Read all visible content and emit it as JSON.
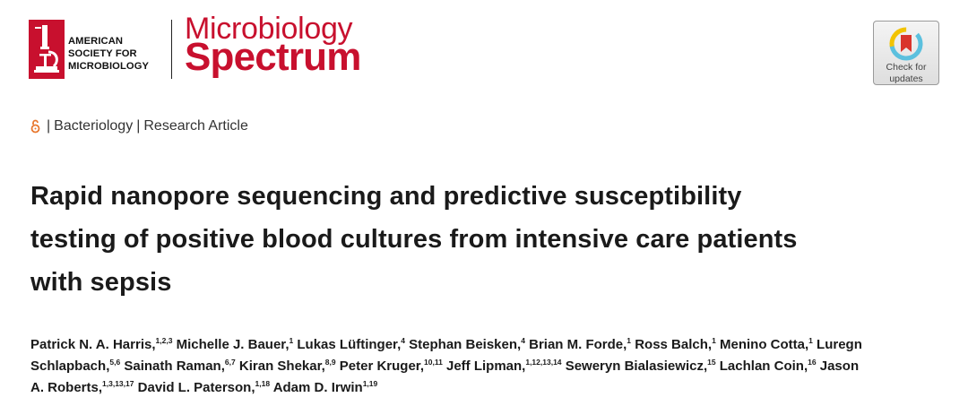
{
  "publisher": {
    "name_lines": [
      "AMERICAN",
      "SOCIETY FOR",
      "MICROBIOLOGY"
    ],
    "brand_color": "#c8102e"
  },
  "journal": {
    "line1": "Microbiology",
    "line2": "Spectrum"
  },
  "check_updates": {
    "line1": "Check for",
    "line2": "updates"
  },
  "article_meta": {
    "open_access_icon": "open-access-icon",
    "separator": "|",
    "section": "Bacteriology",
    "type": "Research Article"
  },
  "title_lines": [
    "Rapid nanopore sequencing and predictive susceptibility",
    "testing of positive blood cultures from intensive care patients",
    "with sepsis"
  ],
  "author_lines": [
    [
      {
        "name": "Patrick N. A. Harris,",
        "sup": "1,2,3"
      },
      {
        "name": "Michelle J. Bauer,",
        "sup": "1"
      },
      {
        "name": "Lukas Lüftinger,",
        "sup": "4"
      },
      {
        "name": "Stephan Beisken,",
        "sup": "4"
      },
      {
        "name": "Brian M. Forde,",
        "sup": "1"
      },
      {
        "name": "Ross Balch,",
        "sup": "1"
      },
      {
        "name": "Menino Cotta,",
        "sup": "1"
      },
      {
        "name": "Luregn",
        "sup": ""
      }
    ],
    [
      {
        "name": "Schlapbach,",
        "sup": "5,6"
      },
      {
        "name": "Sainath Raman,",
        "sup": "6,7"
      },
      {
        "name": "Kiran Shekar,",
        "sup": "8,9"
      },
      {
        "name": "Peter Kruger,",
        "sup": "10,11"
      },
      {
        "name": "Jeff Lipman,",
        "sup": "1,12,13,14"
      },
      {
        "name": "Seweryn Bialasiewicz,",
        "sup": "15"
      },
      {
        "name": "Lachlan Coin,",
        "sup": "16"
      },
      {
        "name": "Jason",
        "sup": ""
      }
    ],
    [
      {
        "name": "A. Roberts,",
        "sup": "1,3,13,17"
      },
      {
        "name": "David L. Paterson,",
        "sup": "1,18"
      },
      {
        "name": "Adam D. Irwin",
        "sup": "1,19"
      }
    ]
  ]
}
